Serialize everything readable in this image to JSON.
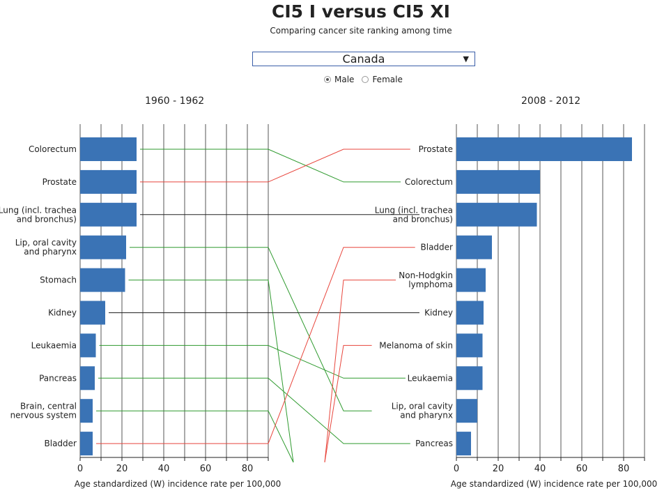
{
  "title": "CI5 I versus CI5 XI",
  "subtitle": "Comparing cancer site ranking among time",
  "country_select": {
    "value": "Canada"
  },
  "sex_options": [
    {
      "label": "Male",
      "selected": true
    },
    {
      "label": "Female",
      "selected": false
    }
  ],
  "colors": {
    "bar": "#3a73b5",
    "up": "#e8453c",
    "down": "#2e9a2e",
    "same": "#222222"
  },
  "chart_data": [
    {
      "type": "bar",
      "orientation": "horizontal",
      "period": "1960 - 1962",
      "xlabel": "Age standardized (W) incidence rate per 100,000",
      "xlim": [
        0,
        90
      ],
      "xticks": [
        0,
        20,
        40,
        60,
        80
      ],
      "categories": [
        "Colorectum",
        "Prostate",
        "Lung (incl. trachea and bronchus)",
        "Lip, oral cavity and pharynx",
        "Stomach",
        "Kidney",
        "Leukaemia",
        "Pancreas",
        "Brain, central nervous system",
        "Bladder"
      ],
      "values": [
        27,
        27,
        27,
        22,
        21.5,
        12,
        7.5,
        7,
        6,
        6
      ],
      "grid": true
    },
    {
      "type": "bar",
      "orientation": "horizontal",
      "period": "2008 - 2012",
      "xlabel": "Age standardized (W) incidence rate per 100,000",
      "xlim": [
        0,
        90
      ],
      "xticks": [
        0,
        20,
        40,
        60,
        80
      ],
      "categories": [
        "Prostate",
        "Colorectum",
        "Lung (incl. trachea and bronchus)",
        "Bladder",
        "Non-Hodgkin lymphoma",
        "Kidney",
        "Melanoma of skin",
        "Leukaemia",
        "Lip, oral cavity and pharynx",
        "Pancreas"
      ],
      "values": [
        84,
        40,
        38.5,
        17,
        14,
        13,
        12.5,
        12.5,
        10,
        7
      ],
      "grid": true
    }
  ]
}
